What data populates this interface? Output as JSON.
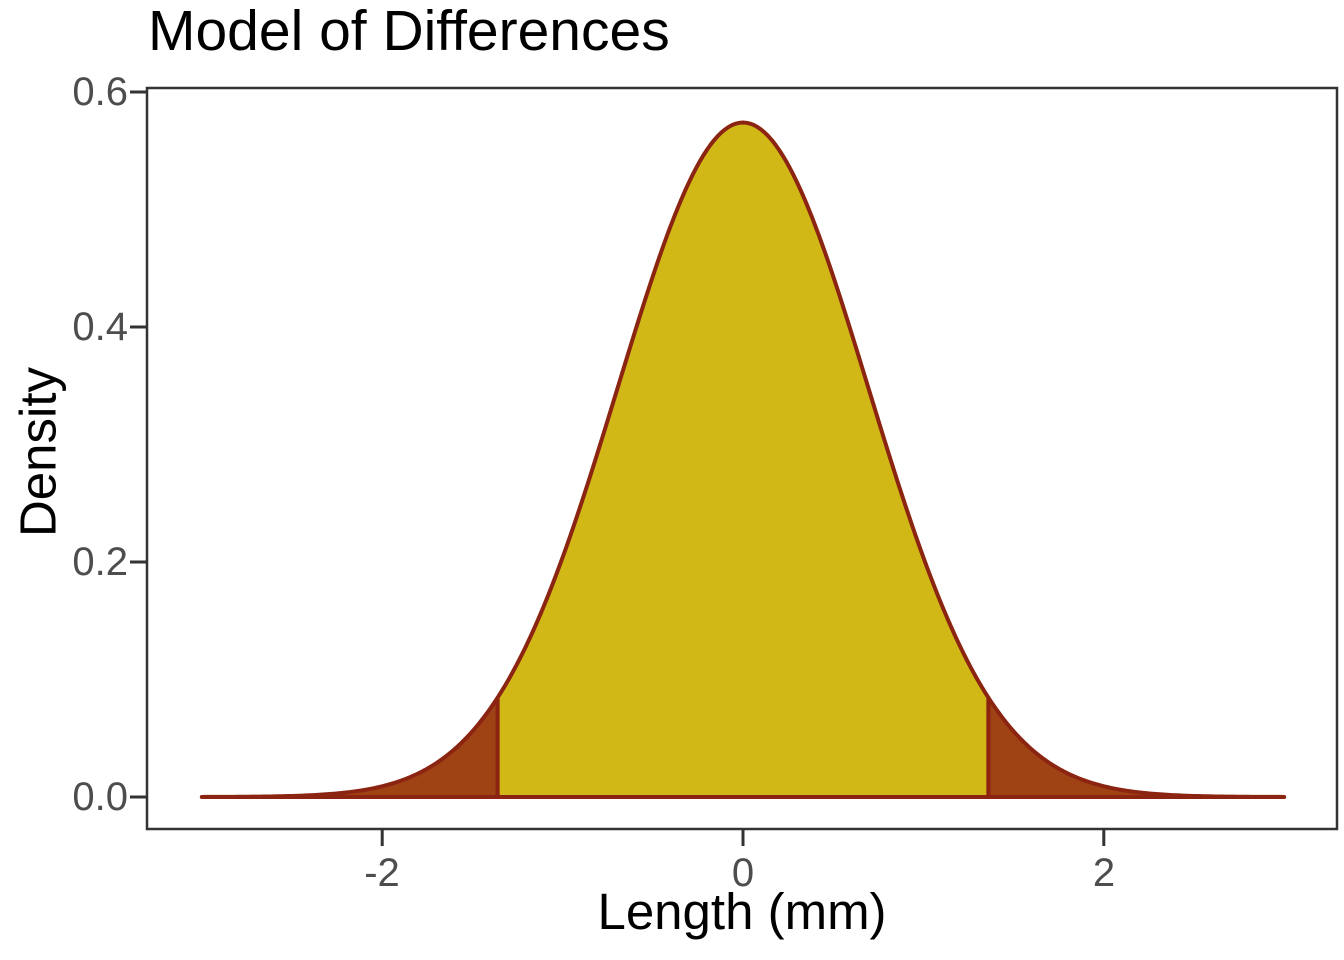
{
  "figure": {
    "background": "#ffffff"
  },
  "chart_data": {
    "type": "area",
    "title": "Model of Differences",
    "xlabel": "Length (mm)",
    "ylabel": "Density",
    "x_ticks": [
      -2,
      0,
      2
    ],
    "x_tick_labels": [
      "-2",
      "0",
      "2"
    ],
    "y_ticks": [
      0.0,
      0.2,
      0.4,
      0.6
    ],
    "y_tick_labels": [
      "0.0",
      "0.2",
      "0.4",
      "0.6"
    ],
    "x_range": [
      -3.0,
      3.0
    ],
    "xlim": [
      -3.3,
      3.3
    ],
    "ylim": [
      -0.027,
      0.603
    ],
    "grid": false,
    "legend": false,
    "distribution": {
      "kind": "normal",
      "mean": 0,
      "sd": 0.695,
      "peak_density": 0.574
    },
    "highlight_interval": [
      -1.36,
      1.36
    ],
    "curve_points": {
      "x": [
        -3.0,
        -2.75,
        -2.5,
        -2.25,
        -2.0,
        -1.75,
        -1.5,
        -1.36,
        -1.25,
        -1.0,
        -0.75,
        -0.5,
        -0.25,
        0.0,
        0.25,
        0.5,
        0.75,
        1.0,
        1.25,
        1.36,
        1.5,
        1.75,
        2.0,
        2.25,
        2.5,
        2.75,
        3.0
      ],
      "density": [
        0.0001,
        0.0002,
        0.0009,
        0.003,
        0.009,
        0.024,
        0.056,
        0.085,
        0.114,
        0.204,
        0.32,
        0.443,
        0.538,
        0.574,
        0.538,
        0.443,
        0.32,
        0.204,
        0.114,
        0.085,
        0.056,
        0.024,
        0.009,
        0.003,
        0.0009,
        0.0002,
        0.0001
      ]
    },
    "colors": {
      "inner_fill": "#d2b817",
      "tail_fill": "#a04314",
      "curve_stroke": "#8b2512",
      "axis_text": "#4d4d4d",
      "axis_title": "#000000",
      "panel_border": "#333333",
      "background": "#ffffff"
    }
  }
}
